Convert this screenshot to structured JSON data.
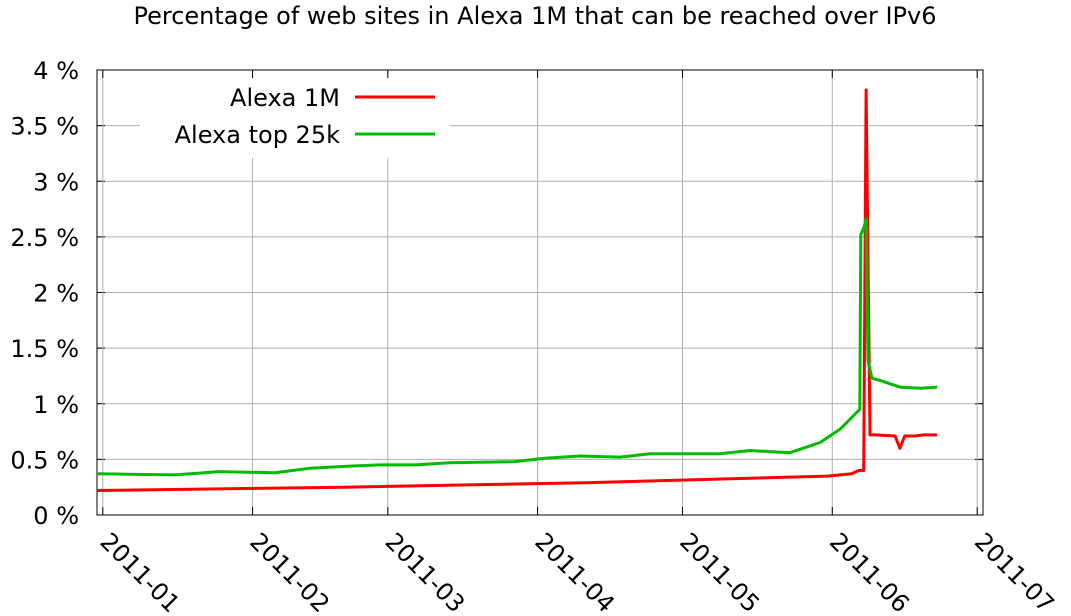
{
  "chart_data": {
    "type": "line",
    "title": "Percentage of web sites in Alexa 1M that can be reached over IPv6",
    "series": [
      {
        "name": "Alexa 1M",
        "color": "#ff0000",
        "x": [
          -1.2,
          50,
          100,
          150,
          155,
          156.5,
          157.5,
          158,
          158.8,
          160,
          164,
          165,
          166,
          168,
          170,
          172.7
        ],
        "values": [
          0.22,
          0.25,
          0.29,
          0.35,
          0.37,
          0.4,
          0.4,
          3.82,
          0.72,
          0.72,
          0.71,
          0.6,
          0.71,
          0.71,
          0.72,
          0.72
        ]
      },
      {
        "name": "Alexa top 25k",
        "color": "#00bb00",
        "x": [
          -1.2,
          14.9,
          21.1,
          23.8,
          35.6,
          42.9,
          51.1,
          57.3,
          64.6,
          71.8,
          85.3,
          91.5,
          98.8,
          107,
          113.3,
          127.7,
          134,
          142.2,
          148.4,
          152.6,
          156.7,
          156.9,
          157.6,
          158,
          158.4,
          159.2,
          160.9,
          165,
          169.2,
          172.7
        ],
        "values": [
          0.37,
          0.36,
          0.38,
          0.39,
          0.38,
          0.42,
          0.44,
          0.45,
          0.45,
          0.47,
          0.48,
          0.51,
          0.53,
          0.52,
          0.55,
          0.55,
          0.58,
          0.56,
          0.65,
          0.77,
          0.95,
          2.52,
          2.59,
          2.66,
          1.39,
          1.23,
          1.21,
          1.15,
          1.14,
          1.15
        ]
      }
    ],
    "xlim": [
      -1.2,
      182.2
    ],
    "xticks": [
      {
        "value": 0,
        "label": "2011-01"
      },
      {
        "value": 31,
        "label": "2011-02"
      },
      {
        "value": 59,
        "label": "2011-03"
      },
      {
        "value": 90,
        "label": "2011-04"
      },
      {
        "value": 120,
        "label": "2011-05"
      },
      {
        "value": 151,
        "label": "2011-06"
      },
      {
        "value": 181,
        "label": "2011-07"
      }
    ],
    "ylim": [
      0,
      4
    ],
    "yticks": [
      {
        "value": 0,
        "label": "0 %"
      },
      {
        "value": 0.5,
        "label": "0.5 %"
      },
      {
        "value": 1,
        "label": "1 %"
      },
      {
        "value": 1.5,
        "label": "1.5 %"
      },
      {
        "value": 2,
        "label": "2 %"
      },
      {
        "value": 2.5,
        "label": "2.5 %"
      },
      {
        "value": 3,
        "label": "3 %"
      },
      {
        "value": 3.5,
        "label": "3.5 %"
      },
      {
        "value": 4,
        "label": "4 %"
      }
    ],
    "grid": true,
    "legend": "top-left"
  }
}
